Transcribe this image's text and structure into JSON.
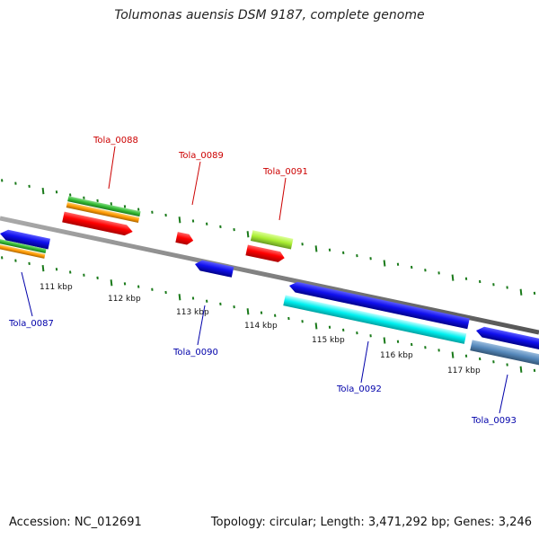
{
  "header": {
    "title": "Tolumonas auensis DSM 9187, complete genome"
  },
  "footer": {
    "accession": "Accession: NC_012691",
    "summary": "Topology: circular; Length: 3,471,292 bp; Genes: 3,246"
  },
  "colors": {
    "forward_label": "#cc0000",
    "reverse_label": "#0000aa",
    "backbone": "#808080",
    "tick": "#1a7a1a",
    "forward_cds": "#ff0000",
    "reverse_cds": "#1010ee",
    "rna_cyan": "#00ffff",
    "gene_green": "#33bb33",
    "gene_orange": "#ff9900",
    "gene_lime": "#aaee33",
    "gene_steel": "#5588bb"
  },
  "scale": {
    "labels": [
      "111 kbp",
      "112 kbp",
      "113 kbp",
      "114 kbp",
      "115 kbp",
      "116 kbp",
      "117 kbp"
    ]
  },
  "genes": [
    {
      "label": "Tola_0087",
      "strand": "reverse"
    },
    {
      "label": "Tola_0088",
      "strand": "forward"
    },
    {
      "label": "Tola_0089",
      "strand": "forward"
    },
    {
      "label": "Tola_0090",
      "strand": "reverse"
    },
    {
      "label": "Tola_0091",
      "strand": "forward"
    },
    {
      "label": "Tola_0092",
      "strand": "reverse"
    },
    {
      "label": "Tola_0093",
      "strand": "reverse"
    }
  ]
}
